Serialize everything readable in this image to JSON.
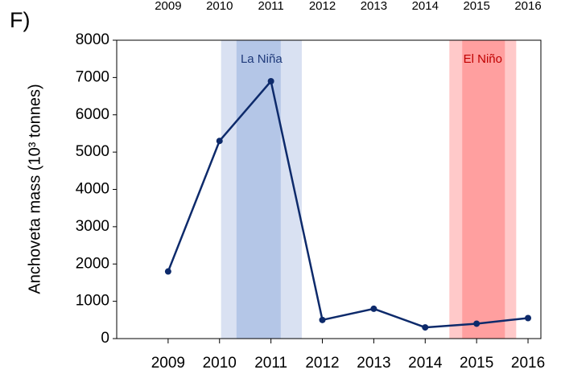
{
  "chart_data": {
    "type": "line",
    "panel_label": "F)",
    "y_label": "Anchoveta mass (10³ tonnes)",
    "x": [
      2009,
      2010,
      2011,
      2012,
      2013,
      2014,
      2015,
      2016
    ],
    "series": [
      {
        "color": "#0d2a6b",
        "values": [
          1800,
          5300,
          6900,
          500,
          800,
          300,
          400,
          550
        ]
      }
    ],
    "xlim": [
      2008,
      2016.25
    ],
    "xticks": [
      2009,
      2010,
      2011,
      2012,
      2013,
      2014,
      2015,
      2016
    ],
    "ylim": [
      0,
      8000
    ],
    "yticks": [
      0,
      1000,
      2000,
      3000,
      4000,
      5000,
      6000,
      7000,
      8000
    ],
    "grid": false,
    "bands": [
      {
        "label": "La Niña",
        "outer": [
          2010.03,
          2011.6
        ],
        "inner": [
          2010.33,
          2011.19
        ],
        "outer_color": "#d9e1f2",
        "inner_color": "#b4c6e7",
        "text_color": "#1f3a7a"
      },
      {
        "label": "El Niño",
        "outer": [
          2014.47,
          2015.77
        ],
        "inner": [
          2014.72,
          2015.55
        ],
        "outer_color": "#ffc9c9",
        "inner_color": "#ff9f9f",
        "text_color": "#c00000"
      }
    ]
  }
}
